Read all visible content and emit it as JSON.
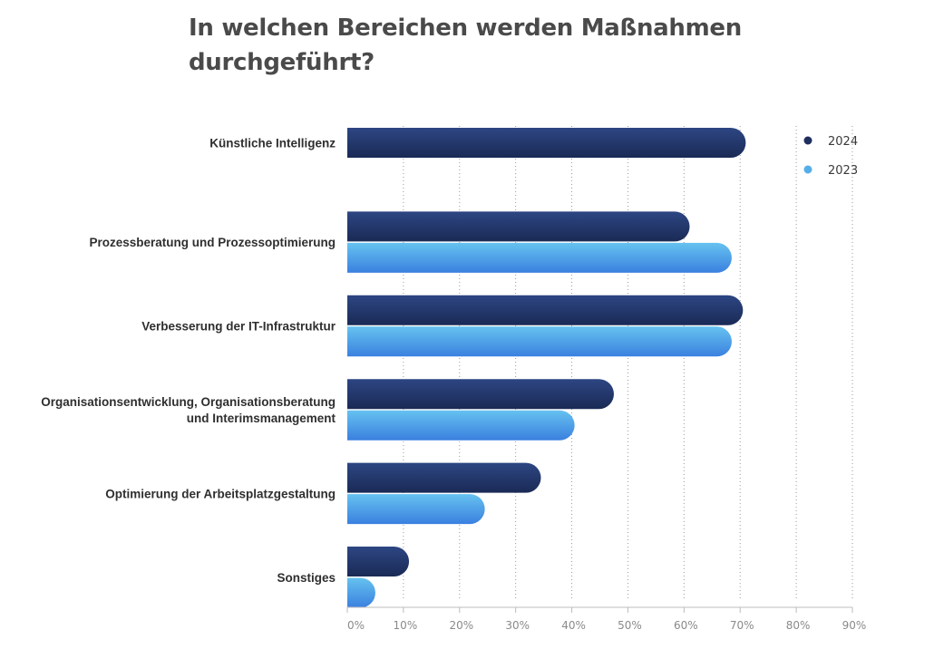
{
  "chart_data": {
    "type": "bar",
    "orientation": "horizontal",
    "title": "In welchen Bereichen werden Maßnahmen durchgeführt?",
    "categories": [
      [
        "Künstliche Intelligenz"
      ],
      [
        "Prozessberatung und Prozessoptimierung"
      ],
      [
        "Verbesserung der IT-Infrastruktur"
      ],
      [
        "Organisationsentwicklung, Organisationsberatung",
        "und Interimsmanagement"
      ],
      [
        "Optimierung der Arbeitsplatzgestaltung"
      ],
      [
        "Sonstiges"
      ]
    ],
    "series": [
      {
        "name": "2024",
        "color": "#1f2f5e",
        "color_light": "#2d4683",
        "values": [
          71,
          61,
          70.5,
          47.5,
          34.5,
          11
        ]
      },
      {
        "name": "2023",
        "color": "#3e86e0",
        "color_light": "#66c0ef",
        "values": [
          null,
          68.5,
          68.5,
          40.5,
          24.5,
          5
        ]
      }
    ],
    "xlim": [
      0,
      90
    ],
    "xticks": [
      0,
      10,
      20,
      30,
      40,
      50,
      60,
      70,
      80,
      90
    ],
    "xtick_labels": [
      "0%",
      "10%",
      "20%",
      "30%",
      "40%",
      "50%",
      "60%",
      "70%",
      "80%",
      "90%"
    ],
    "grid": "vertical dotted",
    "legend": "top-right"
  }
}
